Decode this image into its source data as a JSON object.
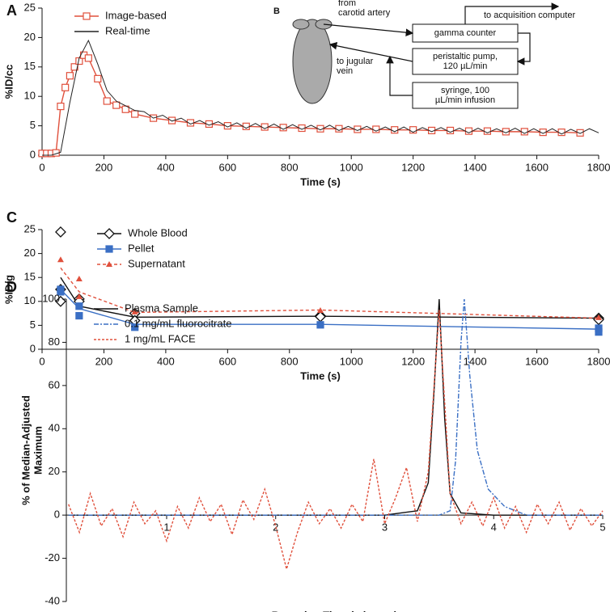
{
  "chart_data": [
    {
      "type": "line",
      "label": "A",
      "xlabel": "Time (s)",
      "ylabel": [
        "%ID/cc"
      ],
      "xlim": [
        0,
        1800
      ],
      "xticks": [
        0,
        200,
        400,
        600,
        800,
        1000,
        1200,
        1400,
        1600,
        1800
      ],
      "ylim": [
        0,
        25
      ],
      "yticks": [
        0,
        5,
        10,
        15,
        20,
        25
      ],
      "series": [
        {
          "name": "Image-based",
          "color": "#e0503c",
          "dash": "",
          "marker": "square",
          "x": [
            0,
            15,
            30,
            45,
            60,
            75,
            90,
            105,
            120,
            135,
            150,
            180,
            210,
            240,
            270,
            300,
            360,
            420,
            480,
            540,
            600,
            660,
            720,
            780,
            840,
            900,
            960,
            1020,
            1080,
            1140,
            1200,
            1260,
            1320,
            1380,
            1440,
            1500,
            1560,
            1620,
            1680,
            1740
          ],
          "values": [
            0.3,
            0.3,
            0.3,
            0.4,
            8.3,
            11.5,
            13.5,
            15,
            16,
            17,
            16.5,
            13,
            9.2,
            8.5,
            7.8,
            7,
            6.3,
            5.9,
            5.5,
            5.3,
            5,
            4.9,
            4.8,
            4.7,
            4.6,
            4.5,
            4.5,
            4.4,
            4.4,
            4.3,
            4.3,
            4.2,
            4.2,
            4.1,
            4.1,
            4,
            4,
            3.9,
            3.9,
            3.8
          ]
        },
        {
          "name": "Real-time",
          "color": "#222222",
          "dash": "",
          "marker": "none",
          "x": [
            0,
            30,
            60,
            90,
            120,
            150,
            180,
            210,
            240,
            270,
            300,
            330,
            360,
            390,
            420,
            450,
            480,
            510,
            540,
            570,
            600,
            630,
            660,
            690,
            720,
            750,
            780,
            810,
            840,
            870,
            900,
            930,
            960,
            990,
            1020,
            1050,
            1080,
            1110,
            1140,
            1170,
            1200,
            1230,
            1260,
            1290,
            1320,
            1350,
            1380,
            1410,
            1440,
            1470,
            1500,
            1530,
            1560,
            1590,
            1620,
            1650,
            1680,
            1710,
            1740,
            1770,
            1800
          ],
          "values": [
            0,
            0,
            0.5,
            9,
            16.5,
            19.5,
            15.5,
            11,
            9.2,
            8.4,
            7.6,
            7.4,
            6.3,
            6.8,
            5.8,
            6.3,
            5.3,
            5.9,
            5.1,
            5.7,
            4.8,
            5.5,
            4.6,
            5.4,
            4.5,
            5.3,
            4.4,
            5.2,
            4.4,
            5.1,
            4.3,
            5.1,
            4.2,
            4.9,
            4.2,
            4.9,
            4.1,
            4.8,
            4,
            4.8,
            3.9,
            4.7,
            4,
            4.7,
            3.9,
            4.6,
            3.8,
            4.6,
            3.8,
            4.5,
            3.8,
            4.6,
            3.7,
            4.5,
            3.7,
            4.5,
            3.6,
            4.4,
            3.7,
            4.5,
            3.8
          ]
        }
      ]
    },
    {
      "type": "line",
      "label": "C",
      "xlabel": "Time (s)",
      "ylabel": [
        "%ID/g"
      ],
      "xlim": [
        0,
        1800
      ],
      "xticks": [
        0,
        200,
        400,
        600,
        800,
        1000,
        1200,
        1400,
        1600,
        1800
      ],
      "ylim": [
        0,
        25
      ],
      "yticks": [
        0,
        5,
        10,
        15,
        20,
        25
      ],
      "series": [
        {
          "name": "Whole Blood",
          "color": "#111111",
          "dash": "",
          "marker": "diamond",
          "x": [
            60,
            120,
            300,
            900,
            1800
          ],
          "values": [
            15,
            9,
            6.7,
            6.9,
            6.5
          ],
          "points": {
            "x": [
              60,
              60,
              60,
              120,
              120,
              300,
              300,
              900,
              900,
              1800,
              1800
            ],
            "values": [
              24.5,
              12.5,
              10,
              10.5,
              10,
              7.5,
              6,
              7,
              6.8,
              6.5,
              6.2
            ]
          }
        },
        {
          "name": "Pellet",
          "color": "#3a6fc4",
          "dash": "",
          "marker": "square",
          "x": [
            60,
            120,
            300,
            900,
            1800
          ],
          "values": [
            12.5,
            8.5,
            5.2,
            5.2,
            4.2
          ],
          "points": {
            "x": [
              60,
              60,
              120,
              120,
              300,
              900,
              1800,
              1800
            ],
            "values": [
              12.5,
              12,
              7,
              9,
              4.6,
              5.1,
              4.4,
              3.6
            ]
          }
        },
        {
          "name": "Supernatant",
          "color": "#e0503c",
          "dash": "4 3",
          "marker": "triangle",
          "x": [
            60,
            120,
            300,
            900,
            1800
          ],
          "values": [
            17,
            12,
            7.7,
            8.2,
            6.5
          ],
          "points": {
            "x": [
              60,
              120,
              120,
              300,
              900,
              1800
            ],
            "values": [
              18.7,
              14.7,
              11,
              7.8,
              8.1,
              6.6
            ]
          }
        }
      ]
    },
    {
      "type": "line",
      "label": "D",
      "xlabel": "Retention Time (minutes)",
      "ylabel": [
        "% of  Median-Adjusted",
        "Maximum"
      ],
      "xlim": [
        0.08,
        5
      ],
      "xticks": [
        1,
        2,
        3,
        4,
        5
      ],
      "ylim": [
        -40,
        100
      ],
      "yticks": [
        -40,
        -20,
        0,
        20,
        40,
        60,
        80,
        100
      ],
      "series": [
        {
          "name": "Plasma Sample",
          "color": "#111111",
          "dash": "",
          "marker": "none",
          "x": [
            0.1,
            1,
            2,
            3,
            3.3,
            3.4,
            3.45,
            3.5,
            3.55,
            3.6,
            3.7,
            4,
            5
          ],
          "values": [
            0,
            0,
            0,
            0,
            2,
            15,
            55,
            100,
            45,
            10,
            1,
            0,
            0
          ]
        },
        {
          "name": "0.1 mg/mL fluorocitrate",
          "color": "#3a6fc4",
          "dash": "6 2 2 2",
          "marker": "none",
          "x": [
            0.1,
            3.5,
            3.6,
            3.65,
            3.7,
            3.73,
            3.78,
            3.85,
            3.95,
            4.1,
            4.3,
            5
          ],
          "values": [
            0,
            0,
            2,
            25,
            80,
            100,
            65,
            30,
            12,
            4,
            0,
            0
          ]
        },
        {
          "name": "1 mg/mL FACE",
          "color": "#e0503c",
          "dash": "3 2",
          "marker": "none",
          "x": [
            0.1,
            0.2,
            0.3,
            0.4,
            0.5,
            0.6,
            0.7,
            0.8,
            0.9,
            1,
            1.1,
            1.2,
            1.3,
            1.4,
            1.5,
            1.6,
            1.7,
            1.8,
            1.9,
            2,
            2.1,
            2.2,
            2.3,
            2.4,
            2.5,
            2.6,
            2.7,
            2.8,
            2.9,
            3,
            3.1,
            3.2,
            3.3,
            3.4,
            3.5,
            3.6,
            3.7,
            3.8,
            3.9,
            4,
            4.1,
            4.2,
            4.3,
            4.4,
            4.5,
            4.6,
            4.7,
            4.8,
            4.9,
            5
          ],
          "values": [
            5,
            -8,
            10,
            -5,
            3,
            -10,
            6,
            -4,
            2,
            -12,
            4,
            -6,
            8,
            -3,
            5,
            -9,
            7,
            -2,
            12,
            -5,
            -25,
            -8,
            6,
            -4,
            3,
            -6,
            5,
            -3,
            26,
            -4,
            8,
            22,
            -3,
            20,
            95,
            10,
            -4,
            6,
            -5,
            8,
            -6,
            4,
            -8,
            5,
            -4,
            6,
            -7,
            3,
            -5,
            2
          ]
        }
      ]
    }
  ],
  "diagram": {
    "label": "B",
    "nodes": [
      {
        "lines": [
          "from",
          "carotid artery"
        ]
      },
      {
        "lines": [
          "to jugular",
          "vein"
        ]
      },
      {
        "lines": [
          "gamma counter"
        ]
      },
      {
        "lines": [
          "peristaltic pump,",
          "120 µL/min"
        ]
      },
      {
        "lines": [
          "syringe, 100",
          "µL/min infusion"
        ]
      },
      {
        "lines": [
          "to acquisition computer"
        ]
      }
    ]
  }
}
